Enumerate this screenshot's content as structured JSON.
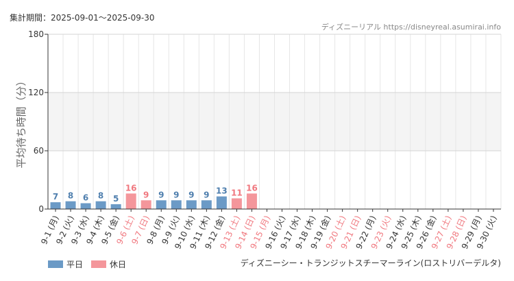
{
  "period_label": "集計期間：2025-09-01～2025-09-30",
  "credit": "ディズニーリアル https://disneyreal.asumirai.info",
  "attraction": "ディズニーシー・トランジットスチーマーライン(ロストリバーデルタ)",
  "colors": {
    "weekday": "#6b9ac6",
    "holiday": "#f4969b",
    "weekday_text": "#4f7fae",
    "holiday_text": "#f0787f",
    "band": "#f4f4f4"
  },
  "chart_data": {
    "type": "bar",
    "ylabel": "平均待ち時間（分）",
    "ylim": [
      0,
      180
    ],
    "yticks": [
      "0",
      "60",
      "120",
      "180"
    ],
    "shaded_band": [
      60,
      120
    ],
    "grid": true,
    "legend_position": "bottom-left",
    "categories": [
      "9-1 (月)",
      "9-2 (火)",
      "9-3 (水)",
      "9-4 (木)",
      "9-5 (金)",
      "9-6 (土)",
      "9-7 (日)",
      "9-8 (月)",
      "9-9 (火)",
      "9-10 (水)",
      "9-11 (木)",
      "9-12 (金)",
      "9-13 (土)",
      "9-14 (日)",
      "9-15 (月)",
      "9-16 (火)",
      "9-17 (水)",
      "9-18 (木)",
      "9-19 (金)",
      "9-20 (土)",
      "9-21 (日)",
      "9-22 (月)",
      "9-23 (火)",
      "9-24 (水)",
      "9-25 (木)",
      "9-26 (金)",
      "9-27 (土)",
      "9-28 (日)",
      "9-29 (月)",
      "9-30 (火)"
    ],
    "holiday": [
      false,
      false,
      false,
      false,
      false,
      true,
      true,
      false,
      false,
      false,
      false,
      false,
      true,
      true,
      true,
      false,
      false,
      false,
      false,
      true,
      true,
      false,
      true,
      false,
      false,
      false,
      true,
      true,
      false,
      false
    ],
    "values": [
      7,
      8,
      6,
      8,
      5,
      16,
      9,
      9,
      9,
      9,
      9,
      13,
      11,
      16,
      null,
      null,
      null,
      null,
      null,
      null,
      null,
      null,
      null,
      null,
      null,
      null,
      null,
      null,
      null,
      null
    ],
    "series": [
      {
        "name": "平日"
      },
      {
        "name": "休日"
      }
    ]
  }
}
